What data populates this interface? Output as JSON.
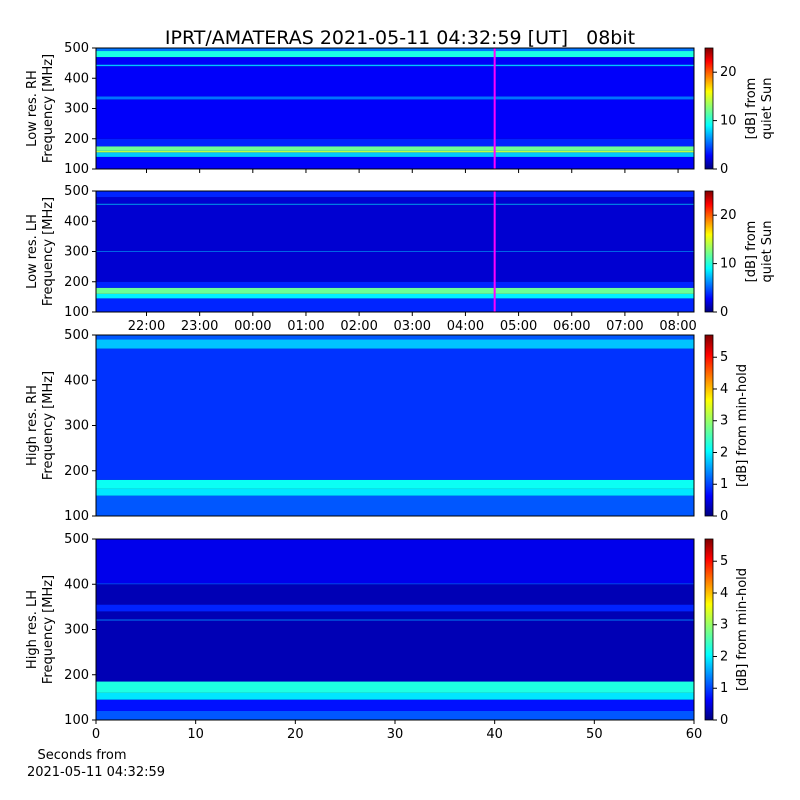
{
  "chart_data": [
    {
      "type": "heatmap",
      "title": "IPRT/AMATERAS 2021-05-11 04:32:59 [UT]   08bit",
      "ylabel": [
        "Low res. RH",
        "Frequency [MHz]"
      ],
      "xlim": [
        -2.95,
        8.3
      ],
      "xticks": [
        -2,
        -1,
        0,
        1,
        2,
        3,
        4,
        5,
        6,
        7,
        8
      ],
      "ylim": [
        100,
        500
      ],
      "yticks": [
        100,
        200,
        300,
        400,
        500
      ],
      "y_bins": [
        100,
        140,
        155,
        160,
        175,
        200,
        330,
        340,
        440,
        445,
        470,
        490,
        500
      ],
      "values": [
        3,
        8,
        14,
        12,
        4,
        3,
        6,
        3,
        8,
        3,
        10,
        6
      ],
      "colormap": "jet",
      "marker_x": 4.55,
      "marker_color": "#ff00ff",
      "colorbar_lim": [
        0,
        25
      ],
      "colorbar_ticks": [
        0,
        10,
        20
      ],
      "colorbar_label": [
        "[dB] from",
        "quiet Sun"
      ]
    },
    {
      "type": "heatmap",
      "ylabel": [
        "Low res. LH",
        "Frequency [MHz]"
      ],
      "xlim": [
        -2.95,
        8.3
      ],
      "xticks": [
        {
          "value": -2,
          "label": "22:00"
        },
        {
          "value": -1,
          "label": "23:00"
        },
        {
          "value": 0,
          "label": "00:00"
        },
        {
          "value": 1,
          "label": "01:00"
        },
        {
          "value": 2,
          "label": "02:00"
        },
        {
          "value": 3,
          "label": "03:00"
        },
        {
          "value": 4,
          "label": "04:00"
        },
        {
          "value": 5,
          "label": "05:00"
        },
        {
          "value": 6,
          "label": "06:00"
        },
        {
          "value": 7,
          "label": "07:00"
        },
        {
          "value": 8,
          "label": "08:00"
        }
      ],
      "ylim": [
        100,
        500
      ],
      "yticks": [
        100,
        200,
        300,
        400,
        500
      ],
      "y_bins": [
        100,
        145,
        160,
        180,
        200,
        300,
        302,
        455,
        458,
        480,
        500
      ],
      "values": [
        4,
        9,
        12,
        4,
        2,
        8,
        2,
        8,
        2,
        4
      ],
      "colormap": "jet",
      "marker_x": 4.55,
      "marker_color": "#ff00ff",
      "colorbar_lim": [
        0,
        25
      ],
      "colorbar_ticks": [
        0,
        10,
        20
      ],
      "colorbar_label": [
        "[dB] from",
        "quiet Sun"
      ]
    },
    {
      "type": "heatmap",
      "ylabel": [
        "High res. RH",
        "Frequency [MHz]"
      ],
      "xlim": [
        0,
        60
      ],
      "ylim": [
        100,
        500
      ],
      "yticks": [
        100,
        200,
        300,
        400,
        500
      ],
      "y_bins": [
        100,
        145,
        160,
        180,
        470,
        490,
        500
      ],
      "values": [
        1.2,
        2,
        2.2,
        1,
        1.8,
        1.2
      ],
      "colormap": "jet",
      "colorbar_lim": [
        0,
        5.7
      ],
      "colorbar_ticks": [
        0,
        1,
        2,
        3,
        4,
        5
      ],
      "colorbar_label": [
        "[dB] from min-hold"
      ]
    },
    {
      "type": "heatmap",
      "ylabel": [
        "High res. LH",
        "Frequency [MHz]"
      ],
      "xlim": [
        0,
        60
      ],
      "xticks": [
        0,
        10,
        20,
        30,
        40,
        50,
        60
      ],
      "xlabel": [
        "Seconds from",
        "2021-05-11 04:32:59"
      ],
      "ylim": [
        100,
        500
      ],
      "yticks": [
        100,
        200,
        300,
        400,
        500
      ],
      "y_bins": [
        100,
        120,
        145,
        160,
        185,
        320,
        322,
        340,
        355,
        400,
        402,
        500
      ],
      "values": [
        1.2,
        0.8,
        2,
        2.3,
        0.3,
        1.5,
        0.3,
        0.9,
        0.3,
        1.2,
        0.6
      ],
      "colormap": "jet",
      "colorbar_lim": [
        0,
        5.7
      ],
      "colorbar_ticks": [
        0,
        1,
        2,
        3,
        4,
        5
      ],
      "colorbar_label": [
        "[dB] from min-hold"
      ]
    }
  ]
}
